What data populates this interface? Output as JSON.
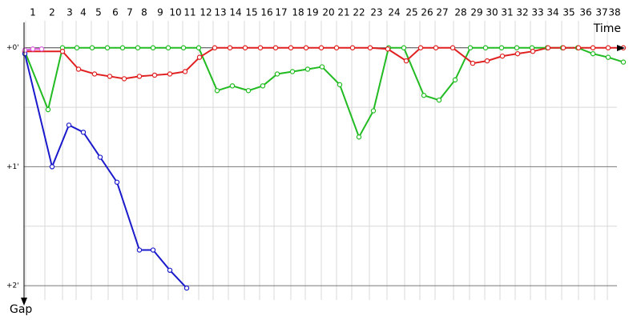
{
  "chart_data": {
    "type": "line",
    "x_label": "Time",
    "y_label": "Gap",
    "xlim": [
      0,
      3000
    ],
    "ylim": [
      -0.2,
      2.1
    ],
    "xticks": [
      {
        "value": 8,
        "label": "1"
      },
      {
        "value": 104,
        "label": "2"
      },
      {
        "value": 192,
        "label": "3"
      },
      {
        "value": 260,
        "label": "4"
      },
      {
        "value": 336,
        "label": "5"
      },
      {
        "value": 420,
        "label": "6"
      },
      {
        "value": 492,
        "label": "7"
      },
      {
        "value": 564,
        "label": "8"
      },
      {
        "value": 644,
        "label": "9"
      },
      {
        "value": 720,
        "label": "10"
      },
      {
        "value": 792,
        "label": "11"
      },
      {
        "value": 872,
        "label": "12"
      },
      {
        "value": 944,
        "label": "13"
      },
      {
        "value": 1020,
        "label": "14"
      },
      {
        "value": 1100,
        "label": "15"
      },
      {
        "value": 1176,
        "label": "16"
      },
      {
        "value": 1248,
        "label": "17"
      },
      {
        "value": 1332,
        "label": "18"
      },
      {
        "value": 1404,
        "label": "19"
      },
      {
        "value": 1484,
        "label": "20"
      },
      {
        "value": 1560,
        "label": "21"
      },
      {
        "value": 1636,
        "label": "22"
      },
      {
        "value": 1724,
        "label": "23"
      },
      {
        "value": 1812,
        "label": "24"
      },
      {
        "value": 1900,
        "label": "25"
      },
      {
        "value": 1976,
        "label": "26"
      },
      {
        "value": 2052,
        "label": "27"
      },
      {
        "value": 2144,
        "label": "28"
      },
      {
        "value": 2224,
        "label": "29"
      },
      {
        "value": 2300,
        "label": "30"
      },
      {
        "value": 2376,
        "label": "31"
      },
      {
        "value": 2452,
        "label": "32"
      },
      {
        "value": 2528,
        "label": "33"
      },
      {
        "value": 2604,
        "label": "34"
      },
      {
        "value": 2684,
        "label": "35"
      },
      {
        "value": 2768,
        "label": "36"
      },
      {
        "value": 2848,
        "label": "37"
      },
      {
        "value": 2912,
        "label": "38"
      }
    ],
    "yticks": [
      {
        "value": 0,
        "label": "+0'"
      },
      {
        "value": 1,
        "label": "+1'"
      },
      {
        "value": 2,
        "label": "+2'"
      }
    ],
    "y_minor_ticks": [
      0.5,
      1.5
    ],
    "grid": true,
    "series": [
      {
        "color": "#22bb22",
        "x": [
          4,
          120,
          192,
          264,
          340,
          416,
          492,
          568,
          644,
          720,
          796,
          872,
          964,
          1040,
          1120,
          1192,
          1264,
          1340,
          1416,
          1488,
          1576,
          1672,
          1744,
          1820,
          1896,
          1996,
          2072,
          2152,
          2228,
          2304,
          2384,
          2460,
          2536,
          2612,
          2688,
          2764,
          2840,
          2916,
          2992
        ],
        "values": [
          0.03,
          0.52,
          0,
          0,
          0,
          0,
          0,
          0,
          0,
          0,
          0,
          0,
          0.36,
          0.32,
          0.36,
          0.32,
          0.22,
          0.2,
          0.18,
          0.16,
          0.31,
          0.75,
          0.53,
          0,
          0,
          0.4,
          0.44,
          0.27,
          0,
          0,
          0,
          0,
          0,
          0,
          0,
          0,
          0.05,
          0.08,
          0.12
        ]
      },
      {
        "color": "#e02020",
        "x": [
          4,
          192,
          272,
          352,
          428,
          500,
          576,
          652,
          728,
          804,
          876,
          952,
          1028,
          1104,
          1180,
          1256,
          1332,
          1408,
          1484,
          1560,
          1640,
          1728,
          1816,
          1908,
          1980,
          2056,
          2140,
          2240,
          2312,
          2388,
          2464,
          2540,
          2616,
          2692,
          2768,
          2840,
          2916,
          2992
        ],
        "values": [
          0.03,
          0.03,
          0.18,
          0.22,
          0.24,
          0.26,
          0.24,
          0.23,
          0.22,
          0.2,
          0.08,
          0,
          0,
          0,
          0,
          0,
          0,
          0,
          0,
          0,
          0,
          0,
          0.01,
          0.11,
          0,
          0,
          0,
          0.13,
          0.11,
          0.07,
          0.05,
          0.03,
          0,
          0,
          0,
          0,
          0,
          0
        ]
      },
      {
        "color": "#1a1acc",
        "x": [
          4,
          140,
          224,
          296,
          380,
          464,
          576,
          644,
          728,
          812
        ],
        "values": [
          0.05,
          1.0,
          0.65,
          0.71,
          0.92,
          1.13,
          1.7,
          1.7,
          1.87,
          2.02
        ]
      },
      {
        "color": "#e060e0",
        "x": [
          4,
          44,
          88
        ],
        "values": [
          0.02,
          0.01,
          0.01
        ]
      }
    ]
  }
}
